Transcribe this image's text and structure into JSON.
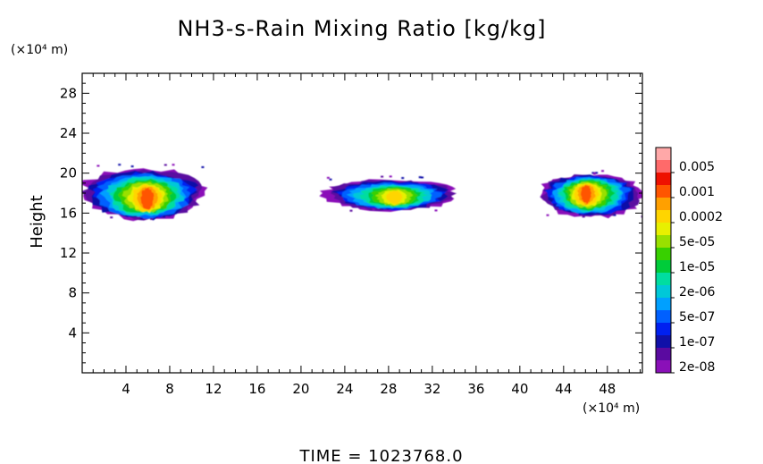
{
  "chart_data": {
    "type": "heatmap",
    "title": "NH3-s-Rain Mixing Ratio [kg/kg]",
    "xlabel": "",
    "ylabel": "Height",
    "x_unit": "(×10⁴ m)",
    "y_unit": "(×10⁴ m)",
    "xlim": [
      0,
      51.2
    ],
    "ylim": [
      0,
      30
    ],
    "x_ticks": [
      4,
      8,
      12,
      16,
      20,
      24,
      28,
      32,
      36,
      40,
      44,
      48
    ],
    "y_ticks": [
      4,
      8,
      12,
      16,
      20,
      24,
      28
    ],
    "colorbar": {
      "labels": [
        "0.005",
        "0.001",
        "0.0002",
        "5e-05",
        "1e-05",
        "2e-06",
        "5e-07",
        "1e-07",
        "2e-08"
      ],
      "colors": [
        "#ffa8a8",
        "#ff6a6a",
        "#ee1100",
        "#ff5500",
        "#ffa000",
        "#ffd500",
        "#e8f000",
        "#99e000",
        "#38d000",
        "#00cc3a",
        "#00dda0",
        "#00c8d8",
        "#00a0ff",
        "#0060ff",
        "#0020f0",
        "#1010a8",
        "#5a0aa0",
        "#8a10b8"
      ]
    },
    "clouds": [
      {
        "x_range": [
          0,
          11.2
        ],
        "y_range": [
          15.6,
          20.8
        ],
        "peak_level": "0.001",
        "peak_at": [
          6,
          17.5
        ]
      },
      {
        "x_range": [
          22.2,
          34.2
        ],
        "y_range": [
          16.4,
          19.6
        ],
        "peak_level": "0.0002",
        "peak_at": [
          28.6,
          17.6
        ]
      },
      {
        "x_range": [
          41.8,
          51.2
        ],
        "y_range": [
          15.8,
          20.2
        ],
        "peak_level": "0.001",
        "peak_at": [
          46,
          18
        ]
      }
    ],
    "time_label": "TIME = 1023768.0"
  },
  "colors": {
    "background": "#ffffff",
    "axis": "#000000"
  }
}
